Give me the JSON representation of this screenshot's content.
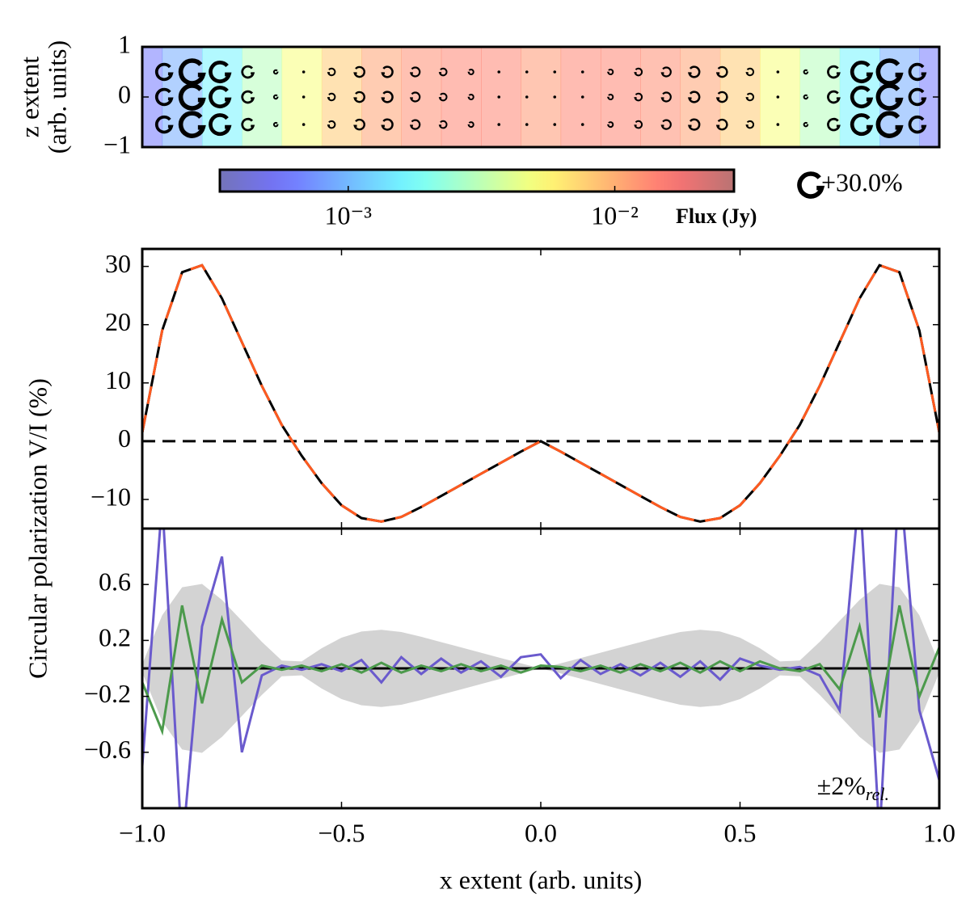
{
  "chart_data": [
    {
      "type": "image",
      "ylabel": [
        "z extent",
        "(arb. units)"
      ],
      "xlim": [
        -1,
        1
      ],
      "ylim": [
        -1,
        1
      ],
      "yticks": [
        {
          "value": -1,
          "label": "−1"
        },
        0,
        1
      ],
      "x": [
        -1,
        -0.9,
        -0.8,
        -0.7,
        -0.6,
        -0.5,
        -0.4,
        -0.3,
        -0.2,
        -0.1,
        0,
        0.1,
        0.2,
        0.3,
        0.4,
        0.5,
        0.6,
        0.7,
        0.8,
        0.9,
        1
      ],
      "flux": [
        0.0006,
        0.0009,
        0.0016,
        0.003,
        0.005,
        0.008,
        0.011,
        0.013,
        0.014,
        0.014,
        0.012,
        0.014,
        0.014,
        0.013,
        0.011,
        0.008,
        0.005,
        0.003,
        0.0016,
        0.0009,
        0.0006
      ],
      "log_color": true,
      "clim": [
        0.00033,
        0.028
      ],
      "cticks": [
        {
          "value": 0.001,
          "label": "10⁻³"
        },
        {
          "value": 0.01,
          "label": "10⁻²"
        }
      ],
      "clabel": "Flux (Jy)",
      "markers": {
        "z": [
          0.5,
          0,
          -0.55
        ],
        "x": [
          -0.945,
          -0.875,
          -0.805,
          -0.735,
          -0.665,
          -0.595,
          -0.525,
          -0.455,
          -0.385,
          -0.315,
          -0.245,
          -0.175,
          -0.105,
          -0.035,
          0.035,
          0.105,
          0.175,
          0.245,
          0.315,
          0.385,
          0.455,
          0.525,
          0.595,
          0.665,
          0.735,
          0.805,
          0.875,
          0.945
        ],
        "values": [
          20,
          30,
          25,
          14.8,
          4.8,
          -3,
          -9,
          -13,
          -13.6,
          -11.8,
          -9.2,
          -6.5,
          -3.9,
          -1.3,
          -1.3,
          -3.9,
          -6.5,
          -9.2,
          -11.8,
          -13.6,
          -13,
          -9,
          -3,
          4.8,
          14.8,
          25,
          30,
          20
        ]
      },
      "marker_legend": {
        "value": 30,
        "label": "+30.0%"
      }
    },
    {
      "type": "line",
      "ylabel": "Circular polarization V/I (%)",
      "xlim": [
        -1,
        1
      ],
      "ylim": [
        -15,
        33
      ],
      "xticks": [
        -1,
        -0.5,
        0,
        0.5,
        1
      ],
      "yticks": [
        {
          "value": -10,
          "label": "−10"
        },
        0,
        10,
        20,
        30
      ],
      "x": [
        -1,
        -0.95,
        -0.9,
        -0.85,
        -0.8,
        -0.75,
        -0.7,
        -0.65,
        -0.6,
        -0.55,
        -0.5,
        -0.45,
        -0.4,
        -0.35,
        -0.3,
        -0.25,
        -0.2,
        -0.15,
        -0.1,
        -0.05,
        0,
        0.05,
        0.1,
        0.15,
        0.2,
        0.25,
        0.3,
        0.35,
        0.4,
        0.45,
        0.5,
        0.55,
        0.6,
        0.65,
        0.7,
        0.75,
        0.8,
        0.85,
        0.9,
        0.95,
        1
      ],
      "series": [
        {
          "color": "#000000",
          "dash": false,
          "values": [
            1.5,
            19.0,
            29.0,
            30.2,
            24.5,
            17.0,
            9.5,
            2.8,
            -2.5,
            -7.2,
            -11.0,
            -13.2,
            -13.8,
            -13.0,
            -11.3,
            -9.4,
            -7.5,
            -5.6,
            -3.7,
            -1.8,
            0,
            -1.8,
            -3.7,
            -5.6,
            -7.5,
            -9.4,
            -11.3,
            -13.0,
            -13.8,
            -13.2,
            -11.0,
            -7.2,
            -2.5,
            2.8,
            9.5,
            17.0,
            24.5,
            30.2,
            29.0,
            19.0,
            1.5
          ]
        },
        {
          "color": "#ff5a1f",
          "dash": true,
          "values": [
            1.5,
            19.0,
            29.0,
            30.2,
            24.5,
            17.0,
            9.5,
            2.8,
            -2.5,
            -7.2,
            -11.0,
            -13.2,
            -13.8,
            -13.0,
            -11.3,
            -9.4,
            -7.5,
            -5.6,
            -3.7,
            -1.8,
            0,
            -1.8,
            -3.7,
            -5.6,
            -7.5,
            -9.4,
            -11.3,
            -13.0,
            -13.8,
            -13.2,
            -11.0,
            -7.2,
            -2.5,
            2.8,
            9.5,
            17.0,
            24.5,
            30.2,
            29.0,
            19.0,
            1.5
          ]
        }
      ]
    },
    {
      "type": "residual",
      "xlabel": "x extent (arb. units)",
      "xlim": [
        -1,
        1
      ],
      "ylim": [
        -1,
        1
      ],
      "xticks": [
        {
          "value": -1,
          "label": "−1.0"
        },
        {
          "value": -0.5,
          "label": "−0.5"
        },
        {
          "value": 0,
          "label": "0.0"
        },
        {
          "value": 0.5,
          "label": "0.5"
        },
        {
          "value": 1,
          "label": "1.0"
        }
      ],
      "yticks": [
        {
          "value": -0.6,
          "label": "−0.6"
        },
        {
          "value": -0.2,
          "label": "−0.2"
        },
        0.2,
        0.6
      ],
      "annotation": {
        "text": "±2%",
        "sub": "rel."
      },
      "x": [
        -1,
        -0.95,
        -0.9,
        -0.85,
        -0.8,
        -0.75,
        -0.7,
        -0.65,
        -0.6,
        -0.55,
        -0.5,
        -0.45,
        -0.4,
        -0.35,
        -0.3,
        -0.25,
        -0.2,
        -0.15,
        -0.1,
        -0.05,
        0,
        0.05,
        0.1,
        0.15,
        0.2,
        0.25,
        0.3,
        0.35,
        0.4,
        0.45,
        0.5,
        0.55,
        0.6,
        0.65,
        0.7,
        0.75,
        0.8,
        0.85,
        0.9,
        0.95,
        1
      ],
      "band": {
        "color": "#d3d3d3",
        "values": [
          0.03,
          0.38,
          0.58,
          0.604,
          0.49,
          0.34,
          0.19,
          0.056,
          0.05,
          0.144,
          0.22,
          0.264,
          0.276,
          0.26,
          0.226,
          0.188,
          0.15,
          0.112,
          0.074,
          0.036,
          0,
          0.036,
          0.074,
          0.112,
          0.15,
          0.188,
          0.226,
          0.26,
          0.276,
          0.264,
          0.22,
          0.144,
          0.05,
          0.056,
          0.19,
          0.34,
          0.49,
          0.604,
          0.58,
          0.38,
          0.03
        ]
      },
      "series": [
        {
          "color": "#6a5acd",
          "values": [
            -0.7,
            1.2,
            -1.3,
            0.3,
            0.8,
            -0.6,
            -0.05,
            0.02,
            -0.01,
            0.03,
            -0.02,
            0.06,
            -0.1,
            0.08,
            -0.04,
            0.07,
            -0.03,
            0.05,
            -0.06,
            0.08,
            0.1,
            -0.07,
            0.06,
            -0.04,
            0.03,
            -0.05,
            0.04,
            -0.06,
            0.05,
            -0.08,
            0.07,
            0.02,
            -0.01,
            0.01,
            -0.05,
            -0.3,
            1.3,
            -1.2,
            1.4,
            -0.3,
            -0.8
          ]
        },
        {
          "color": "#4c9a4c",
          "values": [
            -0.1,
            -0.45,
            0.45,
            -0.25,
            0.35,
            -0.1,
            0.02,
            -0.01,
            0.02,
            -0.02,
            0.03,
            -0.03,
            0.04,
            -0.03,
            0.02,
            -0.02,
            0.03,
            -0.02,
            0.02,
            -0.03,
            0.02,
            0.01,
            -0.02,
            0.02,
            -0.03,
            0.03,
            -0.02,
            0.04,
            -0.03,
            0.05,
            -0.02,
            0.05,
            0,
            -0.02,
            0.03,
            -0.15,
            0.3,
            -0.35,
            0.45,
            -0.2,
            0.15
          ]
        }
      ]
    }
  ]
}
